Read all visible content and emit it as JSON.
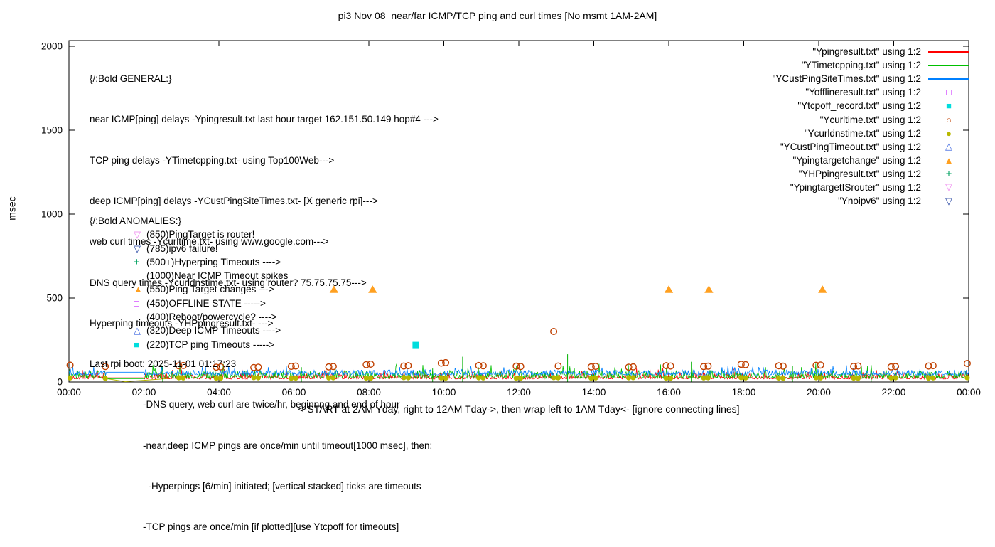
{
  "title": "pi3 Nov 08  near/far ICMP/TCP ping and curl times [No msmt 1AM-2AM]",
  "ylabel": "msec",
  "xlabel": "<-START at 2AM Yday, right to 12AM Tday->, then wrap left to 1AM Tday<- [ignore connecting lines]",
  "general": {
    "lines": [
      "{/:Bold GENERAL:}",
      "near ICMP[ping] delays -Ypingresult.txt last hour target 162.151.50.149 hop#4 --->",
      "TCP ping delays -YTimetcpping.txt- using Top100Web--->",
      "deep ICMP[ping] delays -YCustPingSiteTimes.txt- [X generic rpi]--->",
      "web curl times -Ycurltime.txt- using www.google.com--->",
      "DNS query times -Ycurldnstime.txt- using router? 75.75.75.75--->",
      "Hyperping timeouts -YHPpingresult.txt- --->",
      "Last rpi boot: 2025-11-01 01:17:23",
      "                    -DNS query, web curl are twice/hr, beginnng and end of hour",
      "                    -near,deep ICMP pings are once/min until timeout[1000 msec], then:",
      "                      -Hyperpings [6/min] initiated; [vertical stacked] ticks are timeouts",
      "                    -TCP pings are once/min [if plotted][use Ytcpoff for timeouts]"
    ]
  },
  "anomalies": {
    "heading": "{/:Bold ANOMALIES:}",
    "items": [
      {
        "marker": "▽",
        "color": "#ee82ee",
        "text": "(850)PingTarget is router!"
      },
      {
        "marker": "▽",
        "color": "#2040a0",
        "text": "(785)ipv6 failure!"
      },
      {
        "marker": "+",
        "color": "#00a060",
        "text": "(500+)Hyperping Timeouts ---->"
      },
      {
        "marker": "",
        "color": "",
        "text": "(1000)Near ICMP Timeout spikes"
      },
      {
        "marker": "▲",
        "color": "#ffa020",
        "text": "(550)Ping Target changes --->"
      },
      {
        "marker": "□",
        "color": "#c000ff",
        "text": "(450)OFFLINE STATE ----->"
      },
      {
        "marker": "",
        "color": "",
        "text": "(400)Reboot/powercycle? ---->"
      },
      {
        "marker": "△",
        "color": "#4169e1",
        "text": "(320)Deep ICMP Timeouts ---->"
      },
      {
        "marker": "■",
        "color": "#00dddd",
        "text": "(220)TCP ping Timeouts ----->"
      }
    ]
  },
  "legend": {
    "items": [
      {
        "label": "\"Ypingresult.txt\" using 1:2",
        "color": "#ff0000",
        "sample": "line"
      },
      {
        "label": "\"YTimetcpping.txt\" using 1:2",
        "color": "#00c000",
        "sample": "line"
      },
      {
        "label": "\"YCustPingSiteTimes.txt\" using 1:2",
        "color": "#0080ff",
        "sample": "line"
      },
      {
        "label": "\"Yofflineresult.txt\" using 1:2",
        "color": "#c000ff",
        "sample": "square-open"
      },
      {
        "label": "\"Ytcpoff_record.txt\" using 1:2",
        "color": "#00dddd",
        "sample": "square-filled"
      },
      {
        "label": "\"Ycurltime.txt\" using 1:2",
        "color": "#c04000",
        "sample": "circle-open"
      },
      {
        "label": "\"Ycurldnstime.txt\" using 1:2",
        "color": "#b8b800",
        "sample": "circle-filled"
      },
      {
        "label": "\"YCustPingTimeout.txt\" using 1:2",
        "color": "#4169e1",
        "sample": "triangle-up-open"
      },
      {
        "label": "\"Ypingtargetchange\" using 1:2",
        "color": "#ffa020",
        "sample": "triangle-up-filled"
      },
      {
        "label": "\"YHPpingresult.txt\" using 1:2",
        "color": "#00a060",
        "sample": "plus"
      },
      {
        "label": "\"YpingtargetISrouter\" using 1:2",
        "color": "#ee82ee",
        "sample": "triangle-down-open"
      },
      {
        "label": "\"Ynoipv6\" using 1:2",
        "color": "#2040a0",
        "sample": "triangle-down-open"
      }
    ]
  },
  "chart_data": {
    "type": "line",
    "title": "pi3 Nov 08  near/far ICMP/TCP ping and curl times [No msmt 1AM-2AM]",
    "xlabel": "<-START at 2AM Yday, right to 12AM Tday->, then wrap left to 1AM Tday<- [ignore connecting lines]",
    "ylabel": "msec",
    "ylim": [
      0,
      2000
    ],
    "yticks": [
      0,
      500,
      1000,
      1500,
      2000
    ],
    "x_hours_range": [
      0,
      24
    ],
    "no_measurement_gap_hours": [
      1,
      2
    ],
    "xticks": [
      {
        "h": 0,
        "label": "00:00"
      },
      {
        "h": 2,
        "label": "02:00"
      },
      {
        "h": 4,
        "label": "04:00"
      },
      {
        "h": 6,
        "label": "06:00"
      },
      {
        "h": 8,
        "label": "08:00"
      },
      {
        "h": 10,
        "label": "10:00"
      },
      {
        "h": 12,
        "label": "12:00"
      },
      {
        "h": 14,
        "label": "14:00"
      },
      {
        "h": 16,
        "label": "16:00"
      },
      {
        "h": 18,
        "label": "18:00"
      },
      {
        "h": 20,
        "label": "20:00"
      },
      {
        "h": 22,
        "label": "22:00"
      },
      {
        "h": 24,
        "label": "00:00"
      }
    ],
    "noise_band": {
      "seed": 7,
      "step_h": 0.02,
      "series": [
        {
          "name": "Ypingresult.txt",
          "color": "#ff0000",
          "base": 18,
          "amp": 34,
          "gap_value": 25
        },
        {
          "name": "YTimetcpping.txt",
          "color": "#00c000",
          "base": 22,
          "amp": 46,
          "gap_value": 20
        },
        {
          "name": "YCustPingSiteTimes.txt",
          "color": "#0080ff",
          "base": 42,
          "amp": 30,
          "gap_value": 58
        }
      ]
    },
    "impulses": {
      "name": "YHPpingresult.txt spikes",
      "color": "#00b000",
      "points": [
        [
          2.5,
          95
        ],
        [
          6.2,
          88
        ],
        [
          9.7,
          80
        ],
        [
          10.5,
          150
        ],
        [
          13.3,
          165
        ],
        [
          16.6,
          120
        ],
        [
          19.3,
          95
        ],
        [
          21.4,
          88
        ],
        [
          23.1,
          84
        ]
      ]
    },
    "connecting_line": {
      "name": "Ycurldnstime.txt connecting line",
      "color": "#b8b800",
      "points": [
        [
          0.97,
          21
        ],
        [
          1.5,
          2
        ],
        [
          2.93,
          25
        ]
      ]
    },
    "scatter": [
      {
        "name": "Ycurltime.txt",
        "marker": "circle-open",
        "color": "#c04000",
        "points": [
          [
            0.03,
            100
          ],
          [
            0.97,
            92
          ],
          [
            2.93,
            96
          ],
          [
            3.05,
            98
          ],
          [
            3.93,
            88
          ],
          [
            4.05,
            90
          ],
          [
            4.93,
            86
          ],
          [
            5.05,
            88
          ],
          [
            5.93,
            93
          ],
          [
            6.05,
            95
          ],
          [
            6.93,
            90
          ],
          [
            7.05,
            92
          ],
          [
            7.93,
            103
          ],
          [
            8.05,
            106
          ],
          [
            8.93,
            95
          ],
          [
            9.05,
            97
          ],
          [
            9.93,
            112
          ],
          [
            10.05,
            115
          ],
          [
            10.93,
            98
          ],
          [
            11.05,
            96
          ],
          [
            11.93,
            94
          ],
          [
            12.05,
            92
          ],
          [
            12.93,
            301
          ],
          [
            13.05,
            95
          ],
          [
            13.93,
            90
          ],
          [
            14.05,
            93
          ],
          [
            14.93,
            88
          ],
          [
            15.05,
            90
          ],
          [
            15.93,
            97
          ],
          [
            16.05,
            95
          ],
          [
            16.93,
            92
          ],
          [
            17.05,
            94
          ],
          [
            17.93,
            105
          ],
          [
            18.05,
            103
          ],
          [
            18.93,
            96
          ],
          [
            19.05,
            94
          ],
          [
            19.93,
            99
          ],
          [
            20.05,
            101
          ],
          [
            20.93,
            93
          ],
          [
            21.05,
            95
          ],
          [
            21.93,
            90
          ],
          [
            22.05,
            92
          ],
          [
            22.93,
            95
          ],
          [
            23.05,
            97
          ],
          [
            23.96,
            110
          ]
        ]
      },
      {
        "name": "Ycurldnstime.txt",
        "marker": "circle-filled",
        "color": "#b8b800",
        "points": [
          [
            0.03,
            24
          ],
          [
            0.97,
            21
          ],
          [
            2.93,
            25
          ],
          [
            3.05,
            24
          ],
          [
            3.93,
            22
          ],
          [
            4.05,
            23
          ],
          [
            4.93,
            26
          ],
          [
            5.05,
            25
          ],
          [
            5.93,
            22
          ],
          [
            6.05,
            23
          ],
          [
            6.93,
            24
          ],
          [
            7.05,
            25
          ],
          [
            7.93,
            23
          ],
          [
            8.05,
            22
          ],
          [
            8.93,
            26
          ],
          [
            9.05,
            25
          ],
          [
            9.93,
            24
          ],
          [
            10.05,
            23
          ],
          [
            10.93,
            25
          ],
          [
            11.05,
            24
          ],
          [
            11.93,
            22
          ],
          [
            12.05,
            23
          ],
          [
            12.93,
            26
          ],
          [
            13.05,
            25
          ],
          [
            13.93,
            23
          ],
          [
            14.05,
            24
          ],
          [
            14.93,
            25
          ],
          [
            15.05,
            26
          ],
          [
            15.93,
            22
          ],
          [
            16.05,
            23
          ],
          [
            16.93,
            24
          ],
          [
            17.05,
            25
          ],
          [
            17.93,
            26
          ],
          [
            18.05,
            24
          ],
          [
            18.93,
            23
          ],
          [
            19.05,
            22
          ],
          [
            19.93,
            25
          ],
          [
            20.05,
            24
          ],
          [
            20.93,
            23
          ],
          [
            21.05,
            22
          ],
          [
            21.93,
            24
          ],
          [
            22.05,
            25
          ],
          [
            22.93,
            23
          ],
          [
            23.05,
            24
          ],
          [
            23.96,
            25
          ]
        ]
      },
      {
        "name": "Ypingtargetchange",
        "marker": "triangle-up-filled",
        "color": "#ffa020",
        "points": [
          [
            7.07,
            550
          ],
          [
            8.1,
            550
          ],
          [
            16.0,
            550
          ],
          [
            17.07,
            550
          ],
          [
            20.1,
            550
          ]
        ]
      },
      {
        "name": "Ytcpoff_record.txt",
        "marker": "square-filled",
        "color": "#00dddd",
        "points": [
          [
            9.25,
            220
          ]
        ]
      }
    ]
  }
}
